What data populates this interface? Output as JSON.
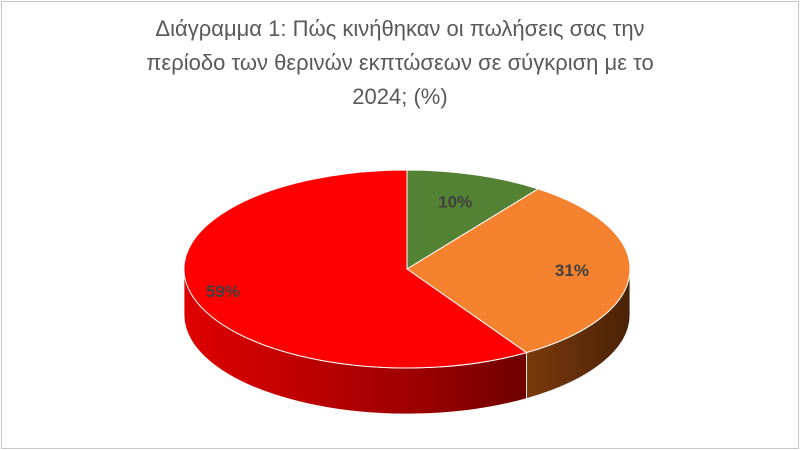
{
  "chart_data": {
    "type": "pie",
    "title_lines": [
      "Διάγραμμα 1: Πώς κινήθηκαν οι πωλήσεις σας την",
      "περίοδο των θερινών εκπτώσεων σε σύγκριση με το",
      "2024; (%)"
    ],
    "legend": "none",
    "slices": [
      {
        "value": 10,
        "label": "10%",
        "color": "#548235"
      },
      {
        "value": 31,
        "label": "31%",
        "color": "#F4822E"
      },
      {
        "value": 59,
        "label": "59%",
        "color": "#FF0000"
      }
    ]
  }
}
